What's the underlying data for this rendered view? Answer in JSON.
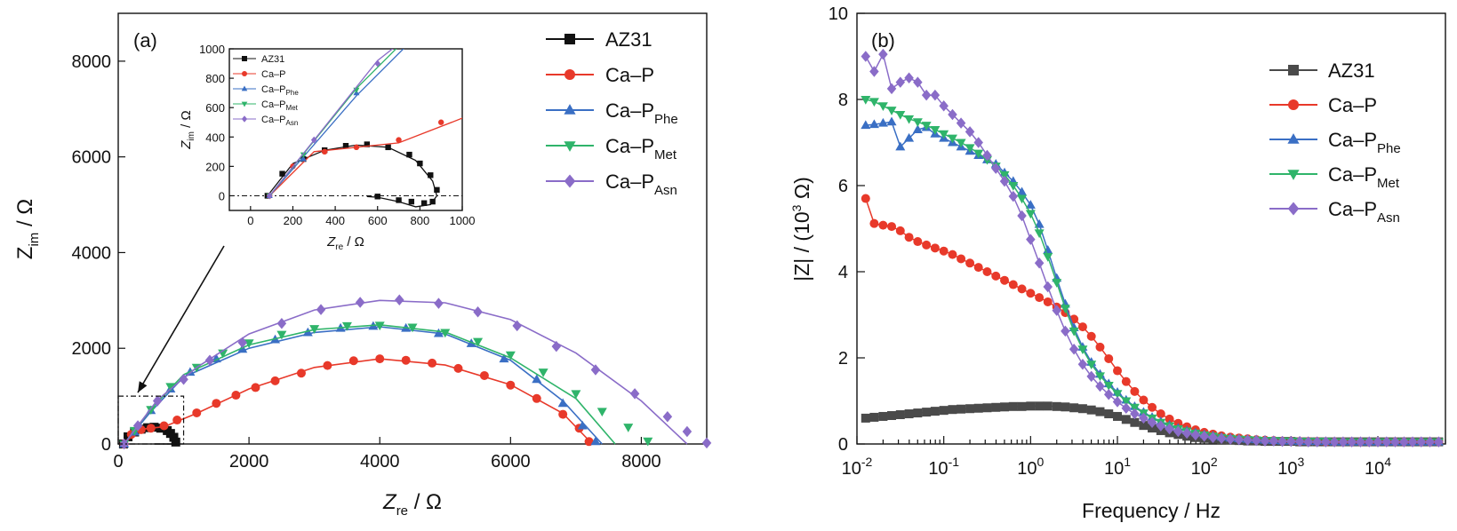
{
  "chart_data": [
    {
      "panel": "(a)",
      "type": "scatter",
      "xlabel_main": "Z",
      "xlabel_sub": "re",
      "xlabel_unit": " / Ω",
      "ylabel_main": "Z",
      "ylabel_sub": "im",
      "ylabel_unit": " / Ω",
      "xlim": [
        0,
        9000
      ],
      "ylim": [
        0,
        9000
      ],
      "xticks": [
        0,
        2000,
        4000,
        6000,
        8000
      ],
      "yticks": [
        0,
        2000,
        4000,
        6000,
        8000
      ],
      "legend_position": "top-right",
      "series": [
        {
          "name": "AZ31",
          "name_main": "AZ31",
          "name_sub": "",
          "color": "#111111",
          "marker": "square",
          "x": [
            80,
            150,
            250,
            350,
            450,
            550,
            650,
            750,
            800,
            850,
            880,
            860,
            820,
            760,
            700,
            600
          ],
          "y": [
            0,
            150,
            250,
            310,
            340,
            350,
            330,
            280,
            220,
            140,
            40,
            -40,
            -50,
            -40,
            -30,
            -5
          ],
          "fit": [
            [
              80,
              0
            ],
            [
              200,
              220
            ],
            [
              350,
              310
            ],
            [
              500,
              345
            ],
            [
              650,
              330
            ],
            [
              780,
              240
            ],
            [
              860,
              100
            ],
            [
              880,
              0
            ],
            [
              850,
              -60
            ],
            [
              780,
              -75
            ],
            [
              700,
              -40
            ],
            [
              600,
              -10
            ],
            [
              550,
              -5
            ]
          ]
        },
        {
          "name": "Ca–P",
          "name_main": "Ca–P",
          "name_sub": "",
          "color": "#e8392a",
          "marker": "circle",
          "x": [
            90,
            200,
            350,
            500,
            700,
            900,
            1200,
            1500,
            1800,
            2100,
            2400,
            2800,
            3200,
            3600,
            4000,
            4400,
            4800,
            5200,
            5600,
            6000,
            6400,
            6800,
            7050,
            7200
          ],
          "y": [
            0,
            200,
            300,
            330,
            380,
            500,
            650,
            850,
            1020,
            1180,
            1320,
            1480,
            1640,
            1740,
            1780,
            1750,
            1690,
            1580,
            1430,
            1230,
            950,
            620,
            330,
            50
          ],
          "fit": [
            [
              90,
              0
            ],
            [
              300,
              300
            ],
            [
              700,
              360
            ],
            [
              1200,
              640
            ],
            [
              2000,
              1150
            ],
            [
              3000,
              1600
            ],
            [
              4000,
              1780
            ],
            [
              5000,
              1650
            ],
            [
              6000,
              1240
            ],
            [
              6800,
              640
            ],
            [
              7250,
              0
            ]
          ]
        },
        {
          "name": "Ca–P_Phe",
          "name_main": "Ca–P",
          "name_sub": "Phe",
          "color": "#3a6fc4",
          "marker": "triangle-up",
          "x": [
            90,
            250,
            500,
            800,
            1100,
            1500,
            1900,
            2400,
            2900,
            3400,
            3900,
            4400,
            4900,
            5400,
            5900,
            6400,
            6800,
            7100,
            7300
          ],
          "y": [
            0,
            250,
            700,
            1150,
            1500,
            1780,
            1980,
            2180,
            2330,
            2420,
            2460,
            2420,
            2310,
            2100,
            1780,
            1350,
            850,
            380,
            50
          ],
          "fit": [
            [
              90,
              0
            ],
            [
              500,
              680
            ],
            [
              1000,
              1400
            ],
            [
              2000,
              2000
            ],
            [
              3000,
              2330
            ],
            [
              4000,
              2450
            ],
            [
              5000,
              2300
            ],
            [
              6000,
              1750
            ],
            [
              6800,
              900
            ],
            [
              7400,
              0
            ]
          ]
        },
        {
          "name": "Ca–P_Met",
          "name_main": "Ca–P",
          "name_sub": "Met",
          "color": "#2fb46a",
          "marker": "triangle-down",
          "x": [
            90,
            250,
            500,
            800,
            1200,
            1600,
            2000,
            2500,
            3000,
            3500,
            4000,
            4500,
            5000,
            5500,
            6000,
            6500,
            7000,
            7400,
            7800,
            8100
          ],
          "y": [
            0,
            280,
            720,
            1200,
            1600,
            1900,
            2110,
            2290,
            2410,
            2470,
            2480,
            2440,
            2330,
            2140,
            1860,
            1500,
            1050,
            680,
            350,
            60
          ],
          "fit": [
            [
              90,
              0
            ],
            [
              500,
              730
            ],
            [
              1000,
              1450
            ],
            [
              2000,
              2070
            ],
            [
              3000,
              2390
            ],
            [
              4000,
              2490
            ],
            [
              5000,
              2340
            ],
            [
              6000,
              1800
            ],
            [
              7000,
              950
            ],
            [
              7600,
              0
            ]
          ]
        },
        {
          "name": "Ca–P_Asn",
          "name_main": "Ca–P",
          "name_sub": "Asn",
          "color": "#8a6cc8",
          "marker": "diamond",
          "x": [
            90,
            300,
            600,
            1000,
            1400,
            1900,
            2500,
            3100,
            3700,
            4300,
            4900,
            5500,
            6100,
            6700,
            7300,
            7900,
            8400,
            8700,
            9000
          ],
          "y": [
            0,
            380,
            900,
            1350,
            1750,
            2120,
            2520,
            2810,
            2960,
            3010,
            2940,
            2760,
            2470,
            2040,
            1550,
            1050,
            570,
            260,
            20
          ],
          "fit": [
            [
              90,
              0
            ],
            [
              600,
              920
            ],
            [
              1200,
              1600
            ],
            [
              2000,
              2300
            ],
            [
              3000,
              2800
            ],
            [
              4000,
              3000
            ],
            [
              5000,
              2950
            ],
            [
              6000,
              2600
            ],
            [
              7000,
              1900
            ],
            [
              8000,
              900
            ],
            [
              8700,
              0
            ]
          ]
        }
      ],
      "inset": {
        "xlabel_main": "Z",
        "xlabel_sub": "re",
        "xlabel_unit": " / Ω",
        "ylabel_main": "Z",
        "ylabel_sub": "im",
        "ylabel_unit": " / Ω",
        "xlim": [
          -100,
          1000
        ],
        "ylim": [
          -100,
          1000
        ],
        "xticks": [
          0,
          200,
          400,
          600,
          800,
          1000
        ],
        "yticks": [
          0,
          200,
          400,
          600,
          800,
          1000
        ],
        "legend_position": "top-left",
        "range_box_x": [
          0,
          1000
        ],
        "range_box_y": [
          0,
          1000
        ]
      }
    },
    {
      "panel": "(b)",
      "type": "line",
      "xlabel": "Frequency / Hz",
      "ylabel_main": "|Z| / (10",
      "ylabel_sup": "3",
      "ylabel_end": " Ω)",
      "xscale": "log",
      "xlim": [
        0.01,
        60000
      ],
      "ylim": [
        0,
        10
      ],
      "xticks": [
        0.01,
        0.1,
        1,
        10,
        100,
        1000,
        10000
      ],
      "xtick_base": "10",
      "xtick_exps": [
        "-2",
        "-1",
        "0",
        "1",
        "2",
        "3",
        "4"
      ],
      "yticks": [
        0,
        2,
        4,
        6,
        8,
        10
      ],
      "legend_position": "top-right",
      "x": [
        0.0126,
        0.0158,
        0.02,
        0.0251,
        0.0316,
        0.0398,
        0.0501,
        0.0631,
        0.0794,
        0.1,
        0.126,
        0.158,
        0.2,
        0.251,
        0.316,
        0.398,
        0.501,
        0.631,
        0.794,
        1,
        1.26,
        1.58,
        2,
        2.51,
        3.16,
        3.98,
        5.01,
        6.31,
        7.94,
        10,
        12.6,
        15.8,
        20,
        25.1,
        31.6,
        39.8,
        50.1,
        63.1,
        79.4,
        100,
        126,
        158,
        200,
        251,
        316,
        398,
        501,
        631,
        794,
        1000,
        1260,
        1580,
        2000,
        2510,
        3160,
        3980,
        5010,
        6310,
        7940,
        10000,
        12600,
        15800,
        20000,
        25100,
        31600,
        39800,
        50100
      ],
      "series": [
        {
          "name": "AZ31",
          "name_main": "AZ31",
          "name_sub": "",
          "color": "#4a4a4a",
          "marker": "square",
          "values": [
            0.6,
            0.62,
            0.64,
            0.66,
            0.68,
            0.7,
            0.72,
            0.74,
            0.76,
            0.78,
            0.8,
            0.81,
            0.82,
            0.83,
            0.84,
            0.85,
            0.86,
            0.87,
            0.87,
            0.88,
            0.88,
            0.88,
            0.87,
            0.86,
            0.84,
            0.82,
            0.79,
            0.75,
            0.7,
            0.64,
            0.57,
            0.5,
            0.43,
            0.37,
            0.31,
            0.26,
            0.22,
            0.18,
            0.15,
            0.13,
            0.11,
            0.1,
            0.09,
            0.08,
            0.07,
            0.07,
            0.06,
            0.06,
            0.06,
            0.06,
            0.05,
            0.05,
            0.05,
            0.05,
            0.05,
            0.05,
            0.05,
            0.05,
            0.05,
            0.05,
            0.05,
            0.05,
            0.05,
            0.05,
            0.05,
            0.05,
            0.05
          ]
        },
        {
          "name": "Ca–P",
          "name_main": "Ca–P",
          "name_sub": "",
          "color": "#e8392a",
          "marker": "circle",
          "values": [
            5.7,
            5.12,
            5.08,
            5.05,
            4.95,
            4.8,
            4.7,
            4.62,
            4.55,
            4.48,
            4.4,
            4.3,
            4.2,
            4.1,
            4.0,
            3.9,
            3.8,
            3.7,
            3.6,
            3.5,
            3.4,
            3.3,
            3.18,
            3.05,
            2.9,
            2.72,
            2.5,
            2.25,
            1.98,
            1.7,
            1.45,
            1.22,
            1.02,
            0.85,
            0.7,
            0.58,
            0.48,
            0.4,
            0.33,
            0.27,
            0.23,
            0.19,
            0.16,
            0.14,
            0.12,
            0.1,
            0.09,
            0.08,
            0.07,
            0.07,
            0.06,
            0.06,
            0.06,
            0.05,
            0.05,
            0.05,
            0.05,
            0.05,
            0.05,
            0.05,
            0.05,
            0.05,
            0.05,
            0.05,
            0.05,
            0.05,
            0.05
          ]
        },
        {
          "name": "Ca–P_Phe",
          "name_main": "Ca–P",
          "name_sub": "Phe",
          "color": "#3a6fc4",
          "marker": "triangle-up",
          "values": [
            7.4,
            7.42,
            7.45,
            7.48,
            6.9,
            7.1,
            7.3,
            7.35,
            7.2,
            7.1,
            7.0,
            6.9,
            6.8,
            6.7,
            6.6,
            6.5,
            6.3,
            6.1,
            5.85,
            5.55,
            5.1,
            4.5,
            3.85,
            3.25,
            2.7,
            2.25,
            1.9,
            1.62,
            1.4,
            1.2,
            1.02,
            0.87,
            0.74,
            0.62,
            0.52,
            0.44,
            0.37,
            0.31,
            0.26,
            0.22,
            0.19,
            0.16,
            0.14,
            0.12,
            0.11,
            0.1,
            0.09,
            0.08,
            0.07,
            0.07,
            0.06,
            0.06,
            0.06,
            0.06,
            0.05,
            0.05,
            0.05,
            0.05,
            0.05,
            0.05,
            0.05,
            0.05,
            0.05,
            0.05,
            0.05,
            0.05,
            0.05
          ]
        },
        {
          "name": "Ca–P_Met",
          "name_main": "Ca–P",
          "name_sub": "Met",
          "color": "#2fb46a",
          "marker": "triangle-down",
          "values": [
            8.0,
            7.95,
            7.85,
            7.75,
            7.65,
            7.55,
            7.48,
            7.4,
            7.3,
            7.2,
            7.1,
            7.0,
            6.88,
            6.75,
            6.6,
            6.45,
            6.25,
            6.0,
            5.7,
            5.35,
            4.9,
            4.35,
            3.75,
            3.15,
            2.62,
            2.2,
            1.85,
            1.58,
            1.36,
            1.17,
            1.0,
            0.85,
            0.72,
            0.6,
            0.5,
            0.42,
            0.35,
            0.3,
            0.25,
            0.21,
            0.18,
            0.15,
            0.13,
            0.11,
            0.1,
            0.09,
            0.08,
            0.08,
            0.07,
            0.07,
            0.06,
            0.06,
            0.06,
            0.06,
            0.05,
            0.05,
            0.05,
            0.05,
            0.05,
            0.05,
            0.05,
            0.05,
            0.05,
            0.05,
            0.05,
            0.05,
            0.05
          ]
        },
        {
          "name": "Ca–P_Asn",
          "name_main": "Ca–P",
          "name_sub": "Asn",
          "color": "#8a6cc8",
          "marker": "diamond",
          "values": [
            9.0,
            8.65,
            9.05,
            8.25,
            8.4,
            8.5,
            8.4,
            8.1,
            8.1,
            7.85,
            7.65,
            7.45,
            7.25,
            7.0,
            6.7,
            6.4,
            6.1,
            5.75,
            5.3,
            4.75,
            4.2,
            3.65,
            3.1,
            2.62,
            2.2,
            1.85,
            1.57,
            1.34,
            1.15,
            0.98,
            0.83,
            0.7,
            0.6,
            0.5,
            0.42,
            0.35,
            0.29,
            0.25,
            0.21,
            0.18,
            0.15,
            0.13,
            0.11,
            0.1,
            0.09,
            0.08,
            0.07,
            0.07,
            0.06,
            0.06,
            0.06,
            0.05,
            0.05,
            0.05,
            0.05,
            0.05,
            0.05,
            0.05,
            0.05,
            0.05,
            0.05,
            0.05,
            0.05,
            0.05,
            0.05,
            0.05,
            0.05
          ]
        }
      ]
    }
  ]
}
